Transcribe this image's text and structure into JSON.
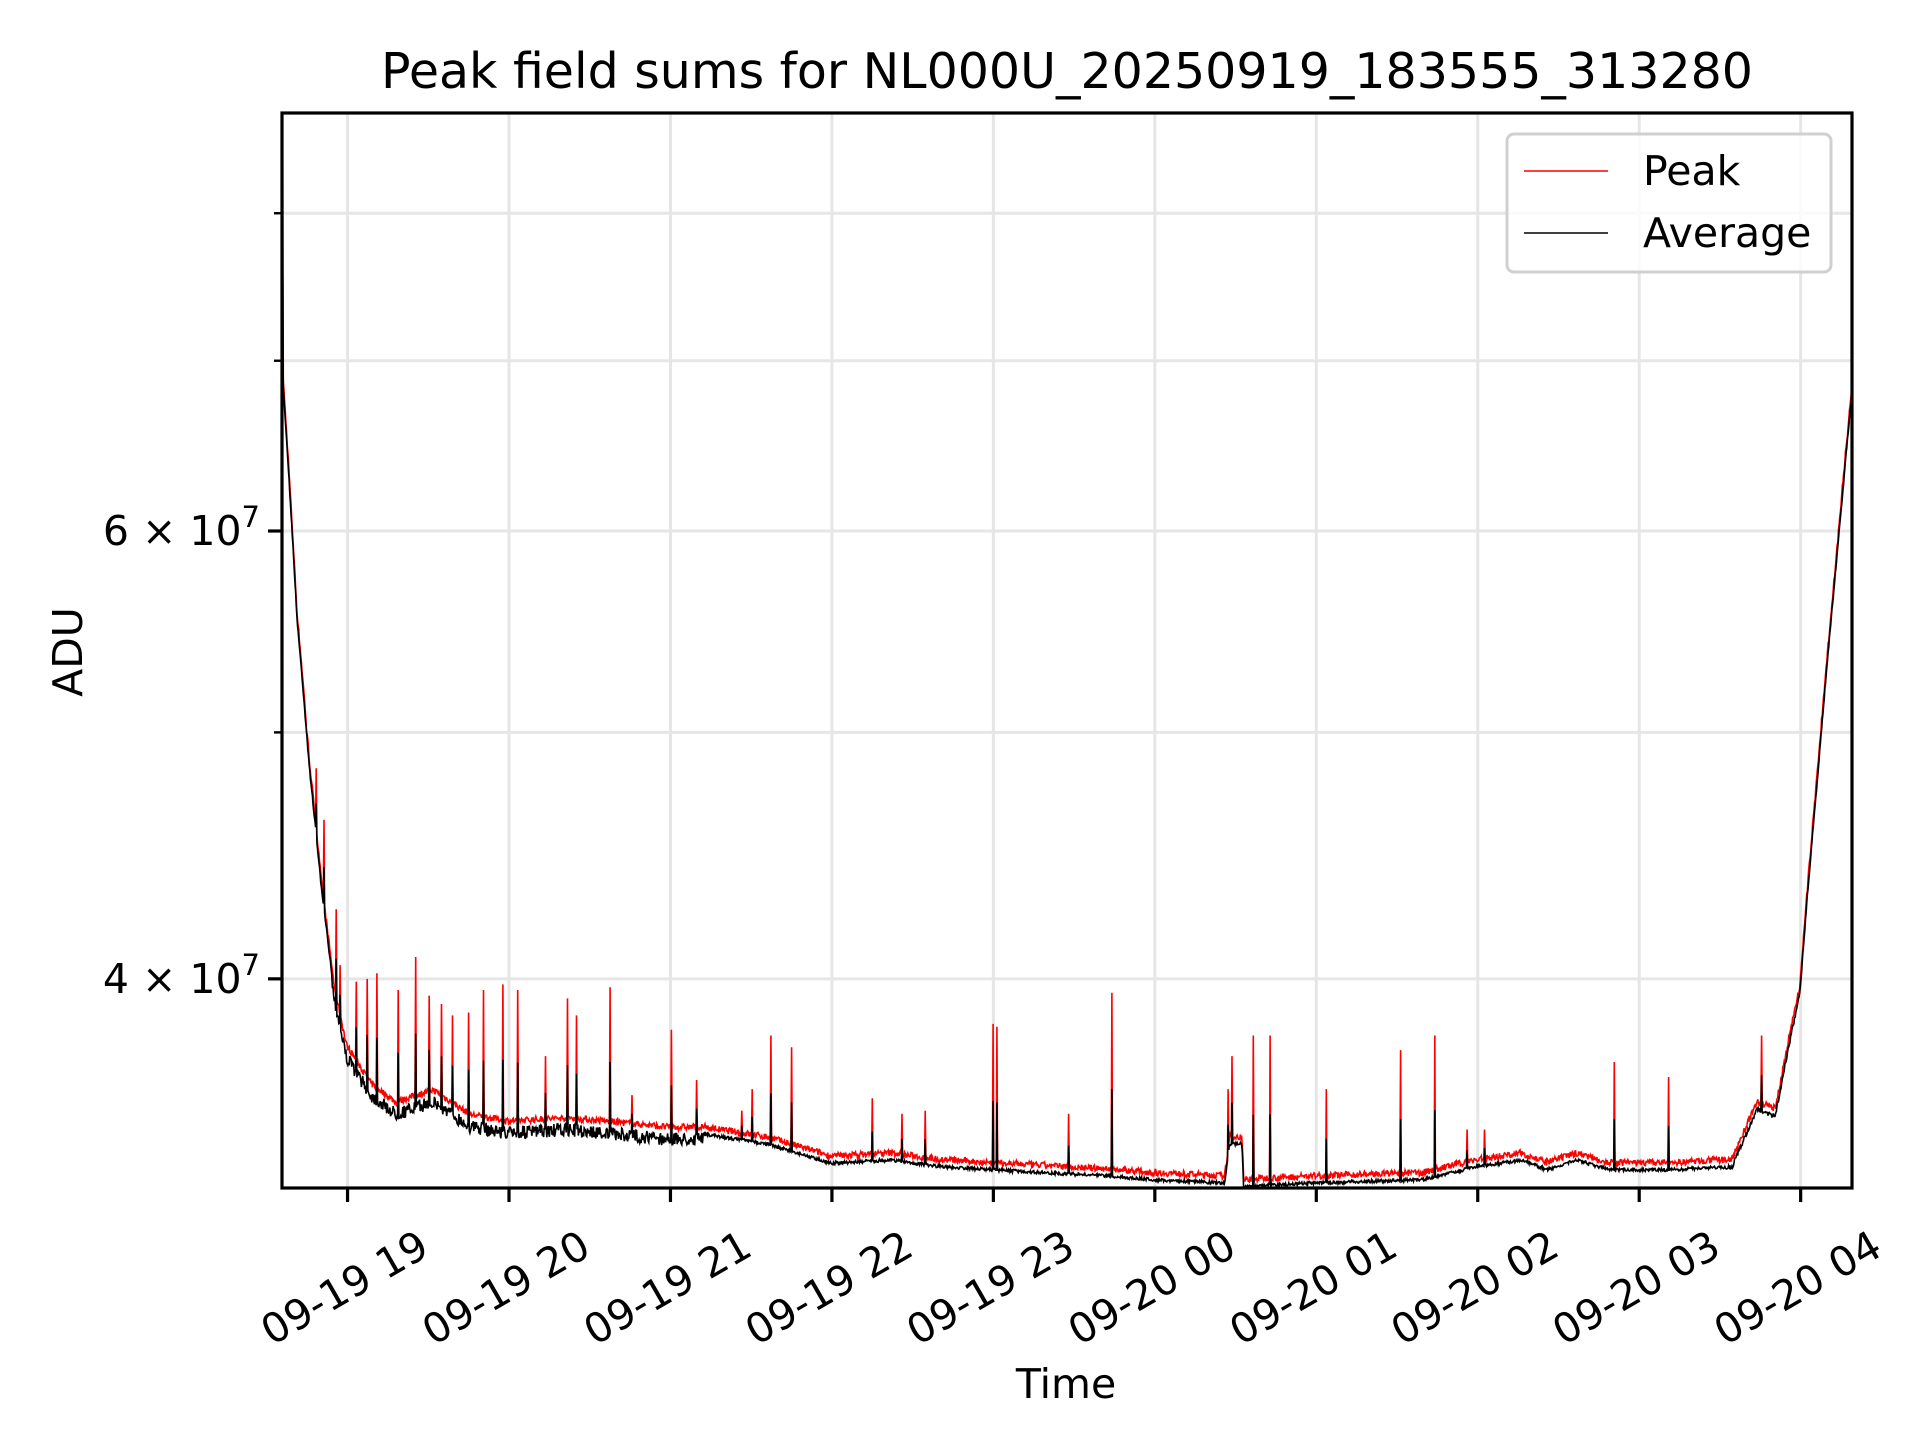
{
  "chart_data": {
    "type": "line",
    "title": "Peak field sums for NL000U_20250919_183555_313280",
    "xlabel": "Time",
    "ylabel": "ADU",
    "x_units": "hours since 09-19 00:00",
    "xlim": [
      18.594,
      28.318
    ],
    "ylim": [
      33100000,
      87600000
    ],
    "yscale": "log",
    "grid": true,
    "legend_position": "top-right",
    "x_ticks": [
      {
        "value": 19,
        "label": "09-19 19"
      },
      {
        "value": 20,
        "label": "09-19 20"
      },
      {
        "value": 21,
        "label": "09-19 21"
      },
      {
        "value": 22,
        "label": "09-19 22"
      },
      {
        "value": 23,
        "label": "09-19 23"
      },
      {
        "value": 24,
        "label": "09-20 00"
      },
      {
        "value": 25,
        "label": "09-20 01"
      },
      {
        "value": 26,
        "label": "09-20 02"
      },
      {
        "value": 27,
        "label": "09-20 03"
      },
      {
        "value": 28,
        "label": "09-20 04"
      }
    ],
    "y_ticks": [
      {
        "value": 40000000,
        "mantissa": "4",
        "base": "10",
        "exp": "7"
      },
      {
        "value": 60000000,
        "mantissa": "6",
        "base": "10",
        "exp": "7"
      }
    ],
    "y_minor_ticks": [
      50000000,
      70000000,
      80000000
    ],
    "series": [
      {
        "name": "Peak",
        "color": "#ff0000"
      },
      {
        "name": "Average",
        "color": "#000000"
      }
    ],
    "average_baseline": [
      [
        18.594,
        69600000
      ],
      [
        18.686,
        55600000
      ],
      [
        18.762,
        48600000
      ],
      [
        18.839,
        43400000
      ],
      [
        18.916,
        39600000
      ],
      [
        18.992,
        37500000
      ],
      [
        19.146,
        36200000
      ],
      [
        19.299,
        35600000
      ],
      [
        19.529,
        36000000
      ],
      [
        19.759,
        35200000
      ],
      [
        20.0,
        35000000
      ],
      [
        20.375,
        35100000
      ],
      [
        20.992,
        34800000
      ],
      [
        21.215,
        34800000
      ],
      [
        21.598,
        34500000
      ],
      [
        21.996,
        33900000
      ],
      [
        22.364,
        34000000
      ],
      [
        22.67,
        33800000
      ],
      [
        23.0,
        33700000
      ],
      [
        23.743,
        33500000
      ],
      [
        23.996,
        33400000
      ],
      [
        24.433,
        33300000
      ],
      [
        24.464,
        34500000
      ],
      [
        24.54,
        34500000
      ],
      [
        24.55,
        33200000
      ],
      [
        24.992,
        33300000
      ],
      [
        25.659,
        33400000
      ],
      [
        25.996,
        33800000
      ],
      [
        26.272,
        34000000
      ],
      [
        26.425,
        33700000
      ],
      [
        26.617,
        34000000
      ],
      [
        26.808,
        33700000
      ],
      [
        26.992,
        33700000
      ],
      [
        27.192,
        33700000
      ],
      [
        27.575,
        33800000
      ],
      [
        27.728,
        35600000
      ],
      [
        27.843,
        35400000
      ],
      [
        27.996,
        39600000
      ],
      [
        28.111,
        48600000
      ],
      [
        28.226,
        58800000
      ],
      [
        28.318,
        68100000
      ]
    ],
    "peak_spikes": [
      [
        18.6,
        87600000
      ],
      [
        18.747,
        50000000
      ],
      [
        18.808,
        48400000
      ],
      [
        18.854,
        46200000
      ],
      [
        18.931,
        42600000
      ],
      [
        18.954,
        40500000
      ],
      [
        19.054,
        39900000
      ],
      [
        19.123,
        40000000
      ],
      [
        19.184,
        40200000
      ],
      [
        19.314,
        39600000
      ],
      [
        19.421,
        40800000
      ],
      [
        19.506,
        39400000
      ],
      [
        19.582,
        39100000
      ],
      [
        19.651,
        38700000
      ],
      [
        19.751,
        38800000
      ],
      [
        19.843,
        39600000
      ],
      [
        19.962,
        39800000
      ],
      [
        20.054,
        39600000
      ],
      [
        20.226,
        37300000
      ],
      [
        20.364,
        39300000
      ],
      [
        20.418,
        38700000
      ],
      [
        20.625,
        39700000
      ],
      [
        20.762,
        36000000
      ],
      [
        21.008,
        38200000
      ],
      [
        21.161,
        36500000
      ],
      [
        21.444,
        35500000
      ],
      [
        21.506,
        36200000
      ],
      [
        21.621,
        38000000
      ],
      [
        21.751,
        37600000
      ],
      [
        22.249,
        35900000
      ],
      [
        22.433,
        35400000
      ],
      [
        22.579,
        35500000
      ],
      [
        23.0,
        38400000
      ],
      [
        23.023,
        38300000
      ],
      [
        23.467,
        35400000
      ],
      [
        23.736,
        39500000
      ],
      [
        24.456,
        36200000
      ],
      [
        24.479,
        37300000
      ],
      [
        24.609,
        38000000
      ],
      [
        24.716,
        38000000
      ],
      [
        25.061,
        36200000
      ],
      [
        25.521,
        37500000
      ],
      [
        25.736,
        38000000
      ],
      [
        25.935,
        34900000
      ],
      [
        26.042,
        34900000
      ],
      [
        26.847,
        37100000
      ],
      [
        27.184,
        36600000
      ],
      [
        27.759,
        38000000
      ]
    ]
  }
}
